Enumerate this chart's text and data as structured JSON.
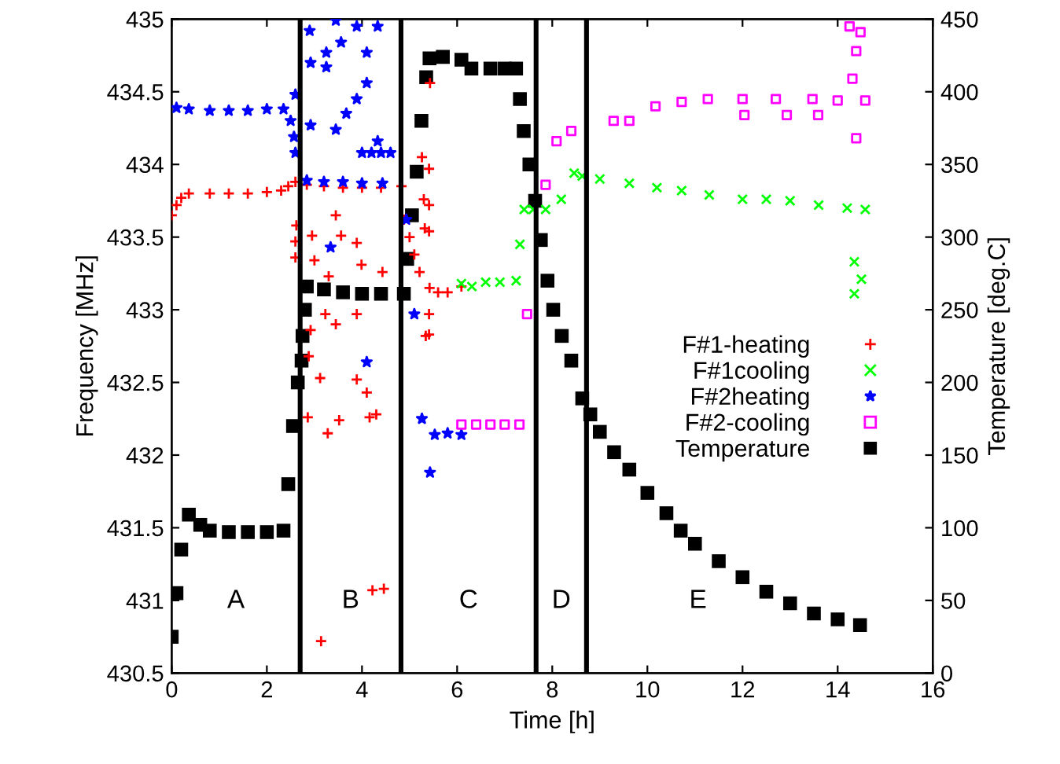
{
  "chart_data": {
    "type": "scatter",
    "xlabel": "Time [h]",
    "ylabel": "Frequency [MHz]",
    "y2label": "Temperature [deg.C]",
    "xlim": [
      0,
      16
    ],
    "xticks": [
      0,
      2,
      4,
      6,
      8,
      10,
      12,
      14,
      16
    ],
    "ylim": [
      430.5,
      435
    ],
    "yticks": [
      430.5,
      431,
      431.5,
      432,
      432.5,
      433,
      433.5,
      434,
      434.5,
      435
    ],
    "y2lim": [
      0,
      450
    ],
    "y2ticks": [
      0,
      50,
      100,
      150,
      200,
      250,
      300,
      350,
      400,
      450
    ],
    "grid": false,
    "legend": "right",
    "ref_lines": [
      {
        "axis": "x",
        "value": 2.7,
        "color": "#000000"
      },
      {
        "axis": "x",
        "value": 4.82,
        "color": "#000000"
      },
      {
        "axis": "x",
        "value": 7.66,
        "color": "#000000"
      },
      {
        "axis": "x",
        "value": 8.72,
        "color": "#000000"
      }
    ],
    "annotations": [
      "A",
      "B",
      "C",
      "D",
      "E"
    ],
    "series": [
      {
        "name": "F#1-heating",
        "color": "#ff0000",
        "marker": "plus",
        "x": [
          0,
          0.1,
          0.2,
          0.36,
          0.8,
          1.2,
          1.6,
          2.0,
          2.3,
          2.45,
          2.6,
          2.84,
          3.2,
          3.6,
          4.0,
          4.4,
          4.83,
          4.88,
          5.0,
          5.1,
          5.21,
          5.42,
          5.6,
          5.8,
          6.09,
          2.62,
          2.6,
          2.6,
          2.95,
          3.0,
          3.45,
          3.56,
          3.3,
          3.89,
          3.99,
          4.43,
          3.23,
          3.45,
          2.92,
          3.89,
          2.88,
          3.12,
          3.89,
          4.1,
          2.86,
          3.28,
          3.52,
          4.16,
          4.3,
          4.22,
          4.46,
          3.14,
          5.26,
          5.3,
          5.32,
          5.34,
          5.43,
          5.41,
          5.41,
          5.41,
          5.41,
          5.41
        ],
        "values": [
          433.65,
          433.72,
          433.77,
          433.8,
          433.8,
          433.8,
          433.8,
          433.81,
          433.82,
          433.85,
          433.88,
          433.86,
          433.85,
          433.84,
          433.84,
          433.84,
          433.85,
          433.62,
          433.5,
          433.38,
          433.26,
          433.15,
          433.12,
          433.12,
          433.16,
          433.58,
          433.47,
          433.36,
          433.51,
          433.34,
          433.65,
          433.51,
          433.23,
          433.46,
          433.31,
          433.26,
          432.97,
          432.9,
          432.86,
          432.97,
          432.68,
          432.53,
          432.52,
          432.43,
          432.26,
          432.15,
          432.24,
          432.26,
          432.28,
          431.07,
          431.08,
          430.72,
          434.05,
          433.76,
          433.56,
          432.82,
          434.56,
          433.97,
          433.72,
          433.54,
          432.97,
          432.83
        ]
      },
      {
        "name": "F#1cooling",
        "color": "#00ff00",
        "marker": "cross",
        "x": [
          6.09,
          6.31,
          6.6,
          6.9,
          7.24,
          7.32,
          7.41,
          7.6,
          7.86,
          8.19,
          8.46,
          8.63,
          9.0,
          9.62,
          10.2,
          10.72,
          11.3,
          12.0,
          12.5,
          13.0,
          13.6,
          14.2,
          14.58,
          14.35,
          14.5,
          14.35
        ],
        "values": [
          433.18,
          433.16,
          433.19,
          433.19,
          433.2,
          433.45,
          433.69,
          433.69,
          433.69,
          433.76,
          433.94,
          433.92,
          433.9,
          433.87,
          433.84,
          433.82,
          433.79,
          433.76,
          433.76,
          433.75,
          433.72,
          433.7,
          433.69,
          433.33,
          433.21,
          433.11
        ]
      },
      {
        "name": "F#2heating",
        "color": "#0000ff",
        "marker": "star",
        "x": [
          0.1,
          0.36,
          0.8,
          1.2,
          1.6,
          2.0,
          2.35,
          2.5,
          2.57,
          2.6,
          2.84,
          3.2,
          3.6,
          4.0,
          4.43,
          4.0,
          4.2,
          4.4,
          4.6,
          2.6,
          2.9,
          2.92,
          3.45,
          3.25,
          3.25,
          3.56,
          3.89,
          4.1,
          4.33,
          2.92,
          3.45,
          3.67,
          3.89,
          4.1,
          4.33,
          3.34,
          4.1,
          4.93,
          5.1,
          5.26,
          5.43,
          5.53,
          5.8,
          6.09
        ],
        "values": [
          434.39,
          434.38,
          434.37,
          434.37,
          434.37,
          434.38,
          434.38,
          434.3,
          434.19,
          434.08,
          433.89,
          433.88,
          433.88,
          433.87,
          433.87,
          434.08,
          434.08,
          434.08,
          434.08,
          434.48,
          434.92,
          434.7,
          434.99,
          434.77,
          434.67,
          434.84,
          434.95,
          434.77,
          434.95,
          434.27,
          434.24,
          434.35,
          434.45,
          434.56,
          434.16,
          433.43,
          432.64,
          433.62,
          432.97,
          432.25,
          431.88,
          432.14,
          432.15,
          432.14
        ]
      },
      {
        "name": "F#2-cooling",
        "color": "#ff00ff",
        "marker": "square_open",
        "x": [
          6.09,
          6.4,
          6.7,
          7.0,
          7.31,
          7.47,
          7.86,
          8.09,
          8.4,
          9.29,
          9.62,
          10.17,
          10.72,
          11.27,
          12.0,
          12.7,
          13.47,
          14.0,
          14.58,
          14.25,
          14.48,
          14.39,
          14.31,
          14.39,
          12.04,
          12.93,
          13.59
        ],
        "values": [
          432.21,
          432.21,
          432.21,
          432.21,
          432.21,
          432.97,
          433.86,
          434.16,
          434.23,
          434.3,
          434.3,
          434.4,
          434.43,
          434.45,
          434.45,
          434.45,
          434.45,
          434.44,
          434.44,
          434.95,
          434.91,
          434.78,
          434.59,
          434.18,
          434.34,
          434.34,
          434.34
        ]
      },
      {
        "name": "Temperature",
        "color": "#000000",
        "marker": "square",
        "axis": "y2",
        "x": [
          0,
          0.1,
          0.2,
          0.36,
          0.6,
          0.8,
          1.2,
          1.6,
          2.0,
          2.35,
          2.45,
          2.55,
          2.65,
          2.73,
          2.75,
          2.8,
          2.84,
          3.2,
          3.6,
          4.0,
          4.4,
          4.88,
          4.95,
          5.05,
          5.15,
          5.25,
          5.35,
          5.42,
          5.7,
          6.09,
          6.3,
          6.7,
          7.0,
          7.24,
          7.32,
          7.4,
          7.52,
          7.64,
          7.76,
          7.9,
          8.02,
          8.2,
          8.4,
          8.63,
          8.8,
          9.0,
          9.3,
          9.62,
          10.0,
          10.4,
          10.7,
          11.0,
          11.5,
          12.0,
          12.5,
          13.0,
          13.5,
          14.0,
          14.47
        ],
        "values": [
          25,
          55,
          85,
          109,
          102,
          98,
          97,
          97,
          97,
          98,
          130,
          170,
          200,
          215,
          232,
          250,
          266,
          264,
          262,
          261,
          261,
          261,
          285,
          315,
          345,
          380,
          410,
          423,
          424,
          422,
          416,
          416,
          416,
          416,
          395,
          373,
          350,
          325,
          298,
          270,
          250,
          232,
          215,
          189,
          178,
          166,
          152,
          140,
          124,
          110,
          98,
          89,
          77,
          66,
          56,
          48,
          41,
          37,
          33
        ]
      }
    ]
  }
}
